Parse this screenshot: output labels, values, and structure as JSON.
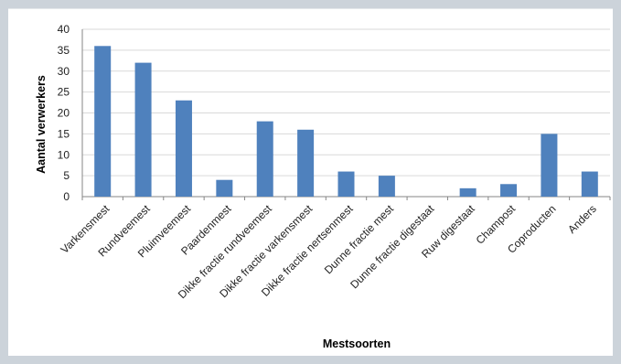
{
  "chart_data": {
    "type": "bar",
    "title": "",
    "xlabel": "Mestsoorten",
    "ylabel": "Aantal verwerkers",
    "ylim": [
      0,
      40
    ],
    "yticks": [
      0,
      5,
      10,
      15,
      20,
      25,
      30,
      35,
      40
    ],
    "grid": true,
    "legend": "none",
    "bar_color": "#4f81bd",
    "categories": [
      "Varkensmest",
      "Rundveemest",
      "Pluimveemest",
      "Paardenmest",
      "Dikke fractie rundveemest",
      "Dikke fractie varkensmest",
      "Dikke fractie nertsenmest",
      "Dunne fractie mest",
      "Dunne fractie digestaat",
      "Ruw digestaat",
      "Champost",
      "Coproducten",
      "Anders"
    ],
    "values": [
      36,
      32,
      23,
      4,
      18,
      16,
      6,
      5,
      0,
      2,
      3,
      15,
      6
    ]
  }
}
